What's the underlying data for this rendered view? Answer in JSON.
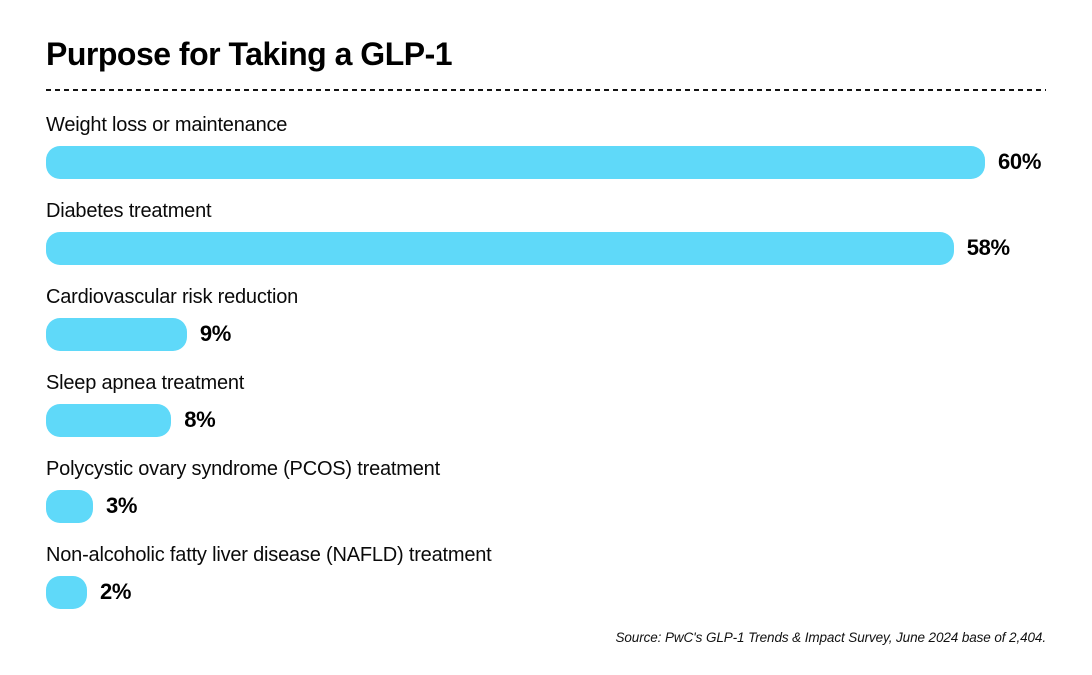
{
  "title": "Purpose for Taking a GLP-1",
  "source_note": "Source: PwC's GLP-1 Trends & Impact Survey, June 2024 base of 2,404.",
  "colors": {
    "bar": "#5FD9F9",
    "text": "#000000",
    "background": "#FFFFFF",
    "divider": "#141414"
  },
  "chart_data": {
    "type": "bar",
    "orientation": "horizontal",
    "title": "Purpose for Taking a GLP-1",
    "categories": [
      "Weight loss or maintenance",
      "Diabetes treatment",
      "Cardiovascular risk reduction",
      "Sleep apnea treatment",
      "Polycystic ovary syndrome (PCOS) treatment",
      "Non-alcoholic fatty liver disease (NAFLD) treatment"
    ],
    "values": [
      60,
      58,
      9,
      8,
      3,
      2
    ],
    "value_suffix": "%",
    "xlabel": "",
    "ylabel": "",
    "xlim": [
      0,
      64
    ],
    "grid": false,
    "legend": false,
    "data_labels": "outside-end"
  }
}
